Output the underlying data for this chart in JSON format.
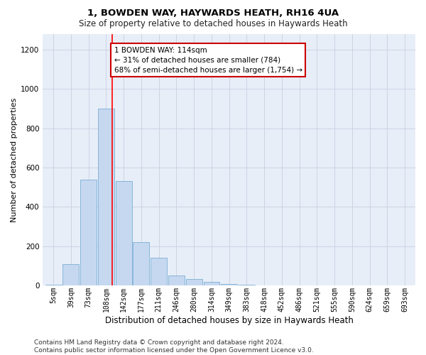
{
  "title": "1, BOWDEN WAY, HAYWARDS HEATH, RH16 4UA",
  "subtitle": "Size of property relative to detached houses in Haywards Heath",
  "xlabel": "Distribution of detached houses by size in Haywards Heath",
  "ylabel": "Number of detached properties",
  "bar_labels": [
    "5sqm",
    "39sqm",
    "73sqm",
    "108sqm",
    "142sqm",
    "177sqm",
    "211sqm",
    "246sqm",
    "280sqm",
    "314sqm",
    "349sqm",
    "383sqm",
    "418sqm",
    "452sqm",
    "486sqm",
    "521sqm",
    "555sqm",
    "590sqm",
    "624sqm",
    "659sqm",
    "693sqm"
  ],
  "bar_values": [
    5,
    110,
    540,
    900,
    530,
    220,
    140,
    52,
    32,
    20,
    10,
    5,
    0,
    0,
    0,
    0,
    0,
    0,
    0,
    0,
    0
  ],
  "bar_color": "#c5d8f0",
  "bar_edge_color": "#7aafd4",
  "grid_color": "#c8d0e0",
  "background_color": "#e8eef8",
  "red_line_x": 3.35,
  "annotation_text": "1 BOWDEN WAY: 114sqm\n← 31% of detached houses are smaller (784)\n68% of semi-detached houses are larger (1,754) →",
  "annotation_box_color": "#ffffff",
  "annotation_border_color": "#cc0000",
  "footnote": "Contains HM Land Registry data © Crown copyright and database right 2024.\nContains public sector information licensed under the Open Government Licence v3.0.",
  "ylim": [
    0,
    1280
  ],
  "yticks": [
    0,
    200,
    400,
    600,
    800,
    1000,
    1200
  ],
  "title_fontsize": 9.5,
  "subtitle_fontsize": 8.5,
  "axis_label_fontsize": 8,
  "tick_fontsize": 7,
  "footnote_fontsize": 6.5,
  "annotation_fontsize": 7.5
}
